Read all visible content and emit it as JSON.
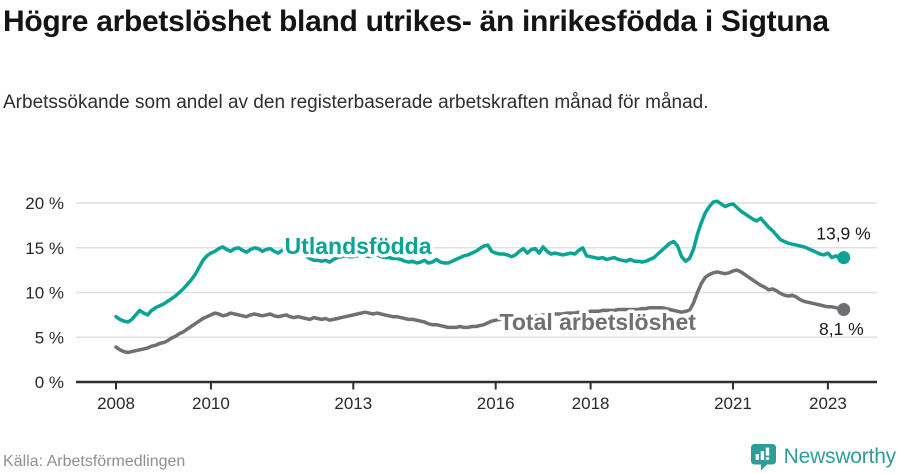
{
  "header": {
    "title": "Högre arbetslöshet bland utrikes- än inrikesfödda i Sigtuna",
    "subtitle": "Arbetssökande som andel av den registerbaserade arbetskraften månad för månad."
  },
  "footer": {
    "source": "Källa: Arbetsförmedlingen",
    "brand": "Newsworthy"
  },
  "colors": {
    "series1": "#0ba396",
    "series2": "#707074",
    "grid": "#e0e0e0",
    "axis": "#2e2d33",
    "tick_text": "#29282e",
    "end_label_text": "#191919",
    "brand_teal": "#2e9d99"
  },
  "chart_data": {
    "type": "line",
    "title": "Högre arbetslöshet bland utrikes- än inrikesfödda i Sigtuna",
    "subtitle": "Arbetssökande som andel av den registerbaserade arbetskraften månad för månad.",
    "xlabel": "",
    "ylabel": "",
    "x_start_year": 2008,
    "x_step_months": 1,
    "x_end": "2023-05",
    "xlim": [
      2007.2,
      2024.0
    ],
    "ylim": [
      0,
      21.5
    ],
    "grid": "horizontal",
    "legend_position": "inline",
    "x_ticks": [
      2008,
      2010,
      2013,
      2016,
      2018,
      2021,
      2023
    ],
    "x_tick_labels": [
      "2008",
      "2010",
      "2013",
      "2016",
      "2018",
      "2021",
      "2023"
    ],
    "y_ticks": [
      0,
      5,
      10,
      15,
      20
    ],
    "y_tick_labels": [
      "0 %",
      "5 %",
      "10 %",
      "15 %",
      "20 %"
    ],
    "inline_labels": [
      {
        "text": "Utlandsfödda",
        "x": 2013.1,
        "y": 14.3,
        "color": "#0ba396"
      },
      {
        "text": "Total arbetslöshet",
        "x": 2018.15,
        "y": 5.82,
        "color": "#707074"
      }
    ],
    "series": [
      {
        "name": "Utlandsfödda",
        "color": "#0ba396",
        "end_label": "13,9 %",
        "end_value": 13.9,
        "values": [
          7.3,
          7.0,
          6.8,
          6.7,
          7.0,
          7.5,
          8.0,
          7.7,
          7.5,
          8.0,
          8.3,
          8.5,
          8.7,
          9.0,
          9.3,
          9.6,
          10.0,
          10.4,
          10.9,
          11.4,
          12.0,
          12.8,
          13.6,
          14.1,
          14.4,
          14.6,
          14.9,
          15.1,
          14.8,
          14.6,
          14.9,
          15.0,
          14.7,
          14.5,
          14.8,
          15.0,
          14.9,
          14.6,
          14.8,
          14.9,
          14.6,
          14.4,
          14.7,
          14.9,
          14.6,
          14.4,
          14.6,
          14.5,
          14.1,
          13.8,
          13.6,
          13.6,
          13.5,
          13.6,
          13.4,
          13.7,
          13.9,
          14.0,
          14.1,
          14.0,
          14.0,
          14.1,
          14.2,
          14.1,
          14.0,
          14.1,
          14.2,
          14.0,
          13.9,
          13.9,
          13.8,
          13.8,
          13.7,
          13.5,
          13.4,
          13.5,
          13.3,
          13.4,
          13.6,
          13.3,
          13.4,
          13.7,
          13.4,
          13.3,
          13.3,
          13.5,
          13.7,
          13.9,
          14.1,
          14.2,
          14.4,
          14.6,
          14.9,
          15.2,
          15.3,
          14.6,
          14.4,
          14.3,
          14.3,
          14.2,
          14.0,
          14.2,
          14.6,
          14.9,
          14.4,
          14.8,
          14.9,
          14.4,
          15.1,
          14.6,
          14.3,
          14.4,
          14.3,
          14.2,
          14.3,
          14.4,
          14.3,
          14.7,
          15.0,
          14.1,
          14.0,
          13.9,
          13.8,
          13.9,
          13.7,
          13.8,
          13.9,
          13.7,
          13.6,
          13.5,
          13.7,
          13.5,
          13.5,
          13.4,
          13.5,
          13.7,
          13.9,
          14.3,
          14.7,
          15.1,
          15.5,
          15.7,
          15.2,
          14.0,
          13.5,
          13.8,
          14.8,
          16.5,
          17.8,
          18.9,
          19.6,
          20.1,
          20.2,
          19.9,
          19.6,
          19.8,
          19.9,
          19.5,
          19.1,
          18.8,
          18.5,
          18.2,
          18.0,
          18.3,
          17.8,
          17.3,
          16.9,
          16.4,
          15.9,
          15.7,
          15.5,
          15.4,
          15.3,
          15.2,
          15.1,
          14.9,
          14.7,
          14.5,
          14.3,
          14.2,
          14.4,
          13.9,
          14.1,
          13.8,
          13.9
        ]
      },
      {
        "name": "Total arbetslöshet",
        "color": "#707074",
        "end_label": "8,1 %",
        "end_value": 8.1,
        "values": [
          3.9,
          3.6,
          3.4,
          3.3,
          3.4,
          3.5,
          3.6,
          3.7,
          3.8,
          4.0,
          4.1,
          4.3,
          4.4,
          4.6,
          4.9,
          5.1,
          5.4,
          5.6,
          5.9,
          6.2,
          6.5,
          6.8,
          7.1,
          7.3,
          7.5,
          7.7,
          7.6,
          7.4,
          7.5,
          7.7,
          7.6,
          7.5,
          7.4,
          7.3,
          7.5,
          7.6,
          7.5,
          7.4,
          7.5,
          7.6,
          7.4,
          7.3,
          7.4,
          7.5,
          7.3,
          7.2,
          7.3,
          7.2,
          7.1,
          7.0,
          7.2,
          7.1,
          7.0,
          7.1,
          6.9,
          7.0,
          7.1,
          7.2,
          7.3,
          7.4,
          7.5,
          7.6,
          7.7,
          7.8,
          7.7,
          7.6,
          7.7,
          7.6,
          7.5,
          7.4,
          7.3,
          7.3,
          7.2,
          7.1,
          7.0,
          7.0,
          6.9,
          6.8,
          6.7,
          6.5,
          6.4,
          6.4,
          6.3,
          6.2,
          6.1,
          6.1,
          6.1,
          6.2,
          6.1,
          6.1,
          6.2,
          6.2,
          6.3,
          6.4,
          6.6,
          6.8,
          6.9,
          7.0,
          7.1,
          7.1,
          7.2,
          7.2,
          7.3,
          7.3,
          7.3,
          7.4,
          7.4,
          7.4,
          7.5,
          7.5,
          7.5,
          7.6,
          7.6,
          7.6,
          7.7,
          7.7,
          7.7,
          7.8,
          7.8,
          7.8,
          7.9,
          7.9,
          7.9,
          8.0,
          8.0,
          8.0,
          8.0,
          8.1,
          8.1,
          8.1,
          8.1,
          8.1,
          8.1,
          8.2,
          8.2,
          8.3,
          8.3,
          8.3,
          8.3,
          8.2,
          8.1,
          8.0,
          7.9,
          7.8,
          7.9,
          8.0,
          8.8,
          10.0,
          11.0,
          11.7,
          12.0,
          12.2,
          12.3,
          12.2,
          12.1,
          12.2,
          12.4,
          12.5,
          12.3,
          12.0,
          11.7,
          11.4,
          11.1,
          10.8,
          10.6,
          10.3,
          10.4,
          10.2,
          9.9,
          9.7,
          9.6,
          9.7,
          9.5,
          9.2,
          9.0,
          8.9,
          8.8,
          8.7,
          8.6,
          8.5,
          8.4,
          8.4,
          8.3,
          8.2,
          8.1
        ]
      }
    ]
  }
}
